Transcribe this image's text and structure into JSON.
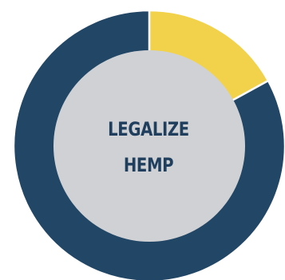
{
  "chart_data": {
    "type": "pie",
    "variant": "donut",
    "slices": [
      {
        "label": "",
        "value": 17,
        "color": "#f1d24a"
      },
      {
        "label": "",
        "value": 83,
        "color": "#224666"
      }
    ],
    "hole_color": "#cfd1d4",
    "center_text": [
      "LEGALIZE",
      "HEMP"
    ],
    "center_text_color": "#203f5e",
    "start_angle_deg": 0,
    "direction": "clockwise"
  }
}
